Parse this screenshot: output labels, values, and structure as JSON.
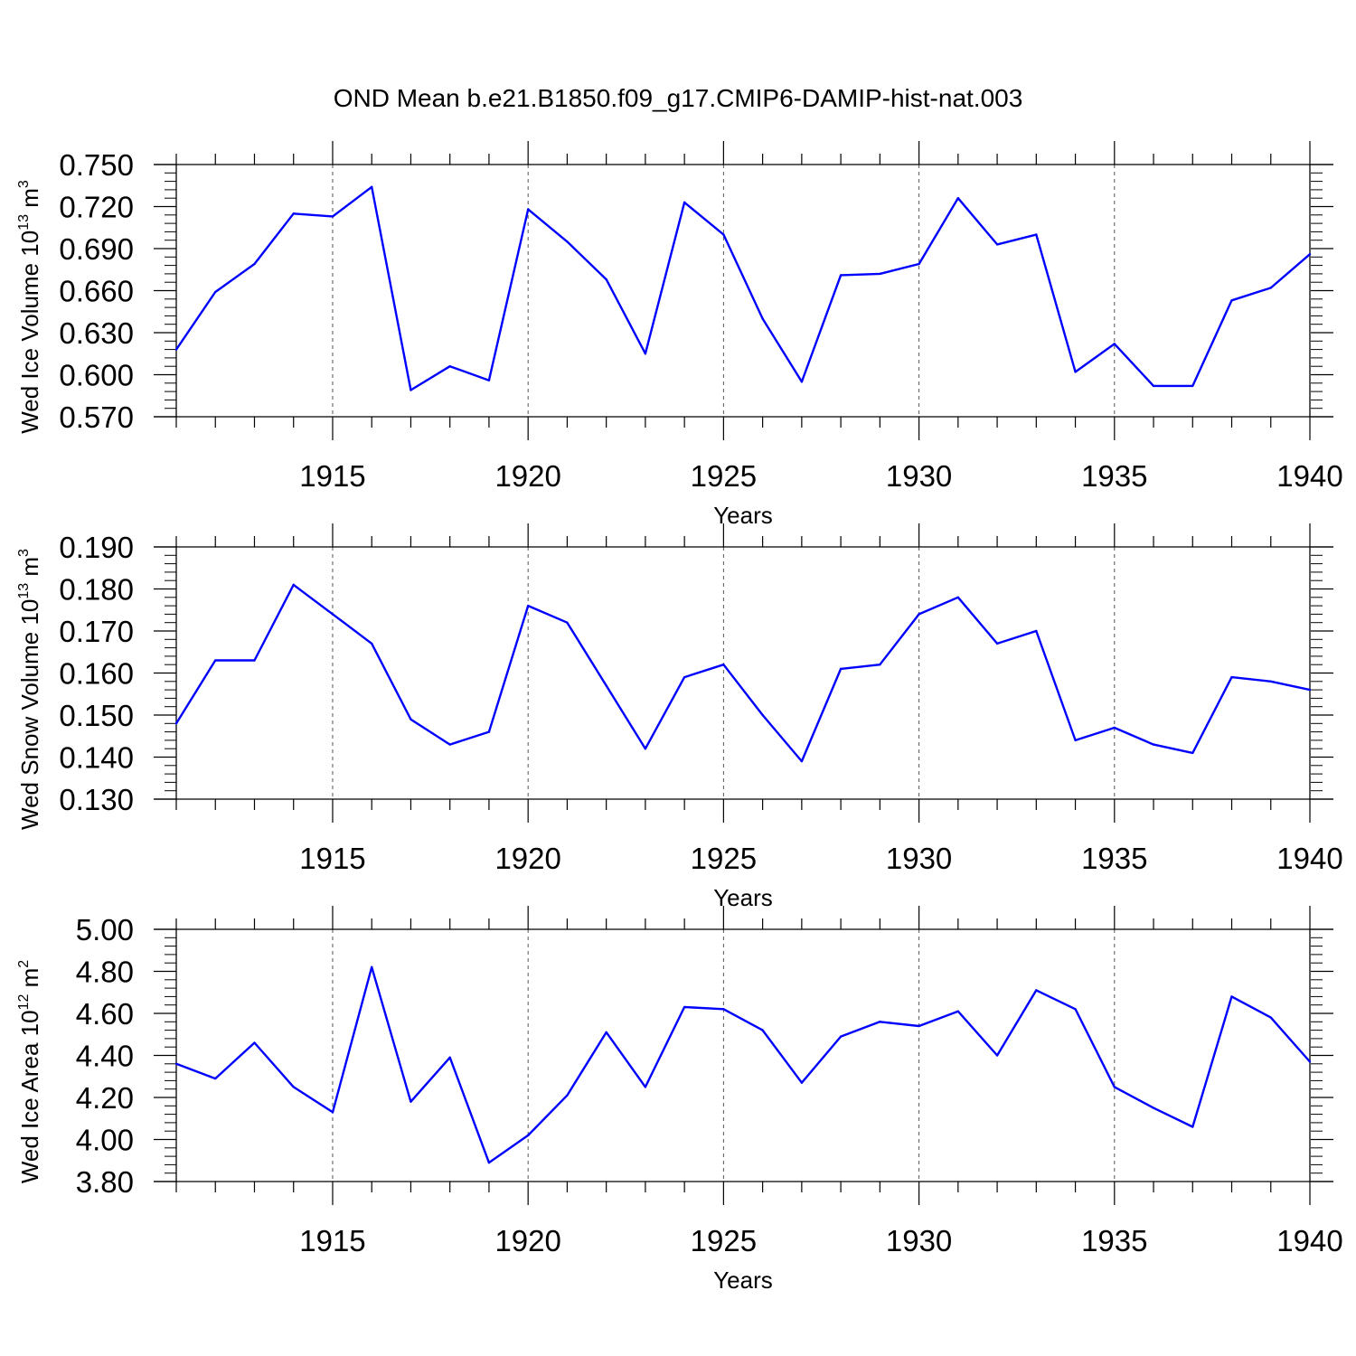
{
  "title": "OND Mean b.e21.B1850.f09_g17.CMIP6-DAMIP-hist-nat.003",
  "line_color": "#0000ff",
  "chart_data": [
    {
      "type": "line",
      "ylabel_main": "Wed Ice Volume 10",
      "ylabel_exp": "13",
      "ylabel_unit": " m",
      "ylabel_unit_exp": "3",
      "xlabel": "Years",
      "xlim": [
        1911,
        1940
      ],
      "ylim": [
        0.57,
        0.75
      ],
      "yticks": [
        0.57,
        0.6,
        0.63,
        0.66,
        0.69,
        0.72,
        0.75
      ],
      "ytick_labels": [
        "0.570",
        "0.600",
        "0.630",
        "0.660",
        "0.690",
        "0.720",
        "0.750"
      ],
      "xticks": [
        1915,
        1920,
        1925,
        1930,
        1935,
        1940
      ],
      "xtick_labels": [
        "1915",
        "1920",
        "1925",
        "1930",
        "1935",
        "1940"
      ],
      "x": [
        1911,
        1912,
        1913,
        1914,
        1915,
        1916,
        1917,
        1918,
        1919,
        1920,
        1921,
        1922,
        1923,
        1924,
        1925,
        1926,
        1927,
        1928,
        1929,
        1930,
        1931,
        1932,
        1933,
        1934,
        1935,
        1936,
        1937,
        1938,
        1939,
        1940
      ],
      "values": [
        0.618,
        0.659,
        0.679,
        0.715,
        0.713,
        0.734,
        0.589,
        0.606,
        0.596,
        0.718,
        0.695,
        0.668,
        0.615,
        0.723,
        0.7,
        0.64,
        0.595,
        0.671,
        0.672,
        0.679,
        0.726,
        0.693,
        0.7,
        0.602,
        0.622,
        0.592,
        0.592,
        0.653,
        0.662,
        0.686
      ]
    },
    {
      "type": "line",
      "ylabel_main": "Wed Snow Volume 10",
      "ylabel_exp": "13",
      "ylabel_unit": " m",
      "ylabel_unit_exp": "3",
      "xlabel": "Years",
      "xlim": [
        1911,
        1940
      ],
      "ylim": [
        0.13,
        0.19
      ],
      "yticks": [
        0.13,
        0.14,
        0.15,
        0.16,
        0.17,
        0.18,
        0.19
      ],
      "ytick_labels": [
        "0.130",
        "0.140",
        "0.150",
        "0.160",
        "0.170",
        "0.180",
        "0.190"
      ],
      "xticks": [
        1915,
        1920,
        1925,
        1930,
        1935,
        1940
      ],
      "xtick_labels": [
        "1915",
        "1920",
        "1925",
        "1930",
        "1935",
        "1940"
      ],
      "x": [
        1911,
        1912,
        1913,
        1914,
        1915,
        1916,
        1917,
        1918,
        1919,
        1920,
        1921,
        1922,
        1923,
        1924,
        1925,
        1926,
        1927,
        1928,
        1929,
        1930,
        1931,
        1932,
        1933,
        1934,
        1935,
        1936,
        1937,
        1938,
        1939,
        1940
      ],
      "values": [
        0.148,
        0.163,
        0.163,
        0.181,
        0.174,
        0.167,
        0.149,
        0.143,
        0.146,
        0.176,
        0.172,
        0.157,
        0.142,
        0.159,
        0.162,
        0.15,
        0.139,
        0.161,
        0.162,
        0.174,
        0.178,
        0.167,
        0.17,
        0.144,
        0.147,
        0.143,
        0.141,
        0.159,
        0.158,
        0.156
      ]
    },
    {
      "type": "line",
      "ylabel_main": "Wed Ice Area 10",
      "ylabel_exp": "12",
      "ylabel_unit": " m",
      "ylabel_unit_exp": "2",
      "xlabel": "Years",
      "xlim": [
        1911,
        1940
      ],
      "ylim": [
        3.8,
        5.0
      ],
      "yticks": [
        3.8,
        4.0,
        4.2,
        4.4,
        4.6,
        4.8,
        5.0
      ],
      "ytick_labels": [
        "3.80",
        "4.00",
        "4.20",
        "4.40",
        "4.60",
        "4.80",
        "5.00"
      ],
      "xticks": [
        1915,
        1920,
        1925,
        1930,
        1935,
        1940
      ],
      "xtick_labels": [
        "1915",
        "1920",
        "1925",
        "1930",
        "1935",
        "1940"
      ],
      "x": [
        1911,
        1912,
        1913,
        1914,
        1915,
        1916,
        1917,
        1918,
        1919,
        1920,
        1921,
        1922,
        1923,
        1924,
        1925,
        1926,
        1927,
        1928,
        1929,
        1930,
        1931,
        1932,
        1933,
        1934,
        1935,
        1936,
        1937,
        1938,
        1939,
        1940
      ],
      "values": [
        4.36,
        4.29,
        4.46,
        4.25,
        4.13,
        4.82,
        4.18,
        4.39,
        3.89,
        4.02,
        4.21,
        4.51,
        4.25,
        4.63,
        4.62,
        4.52,
        4.27,
        4.49,
        4.56,
        4.54,
        4.61,
        4.4,
        4.71,
        4.62,
        4.25,
        4.15,
        4.06,
        4.68,
        4.58,
        4.37
      ]
    }
  ]
}
